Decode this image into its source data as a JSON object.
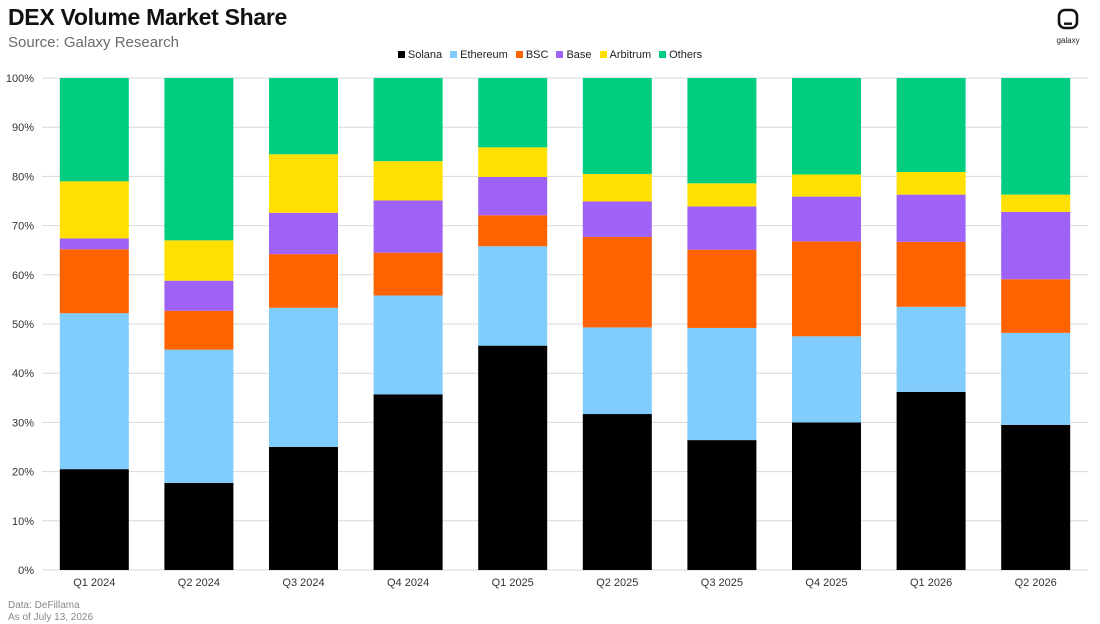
{
  "header": {
    "title": "DEX Volume Market Share",
    "subtitle": "Source: Galaxy Research",
    "logo_text": "galaxy"
  },
  "footer": {
    "source": "Data: DeFillama",
    "asof": "As of July 13, 2026"
  },
  "colors": {
    "Solana": "#000000",
    "Ethereum": "#80ccfc",
    "BSC": "#ff6200",
    "Base": "#9f62f7",
    "Arbitrum": "#ffe000",
    "Others": "#00cd80",
    "grid": "#d9d9d9"
  },
  "chart_data": {
    "type": "bar",
    "stacked": true,
    "title": "DEX Volume Market Share",
    "subtitle": "Source: Galaxy Research",
    "categories": [
      "Q1 2024",
      "Q2 2024",
      "Q3 2024",
      "Q4 2024",
      "Q1 2025",
      "Q2 2025",
      "Q3 2025",
      "Q4 2025",
      "Q1 2026",
      "Q2 2026"
    ],
    "yticks": [
      "0%",
      "10%",
      "20%",
      "30%",
      "40%",
      "50%",
      "60%",
      "70%",
      "80%",
      "90%",
      "100%"
    ],
    "ylim": [
      0,
      100
    ],
    "grid": true,
    "legend_position": "top-center",
    "series": [
      {
        "name": "Solana",
        "values": [
          20.5,
          17.7,
          25.0,
          35.7,
          45.6,
          31.7,
          26.4,
          30.0,
          36.2,
          29.5
        ]
      },
      {
        "name": "Ethereum",
        "values": [
          31.7,
          27.1,
          28.3,
          20.1,
          20.2,
          17.6,
          22.8,
          17.5,
          17.3,
          18.7
        ]
      },
      {
        "name": "BSC",
        "values": [
          13.0,
          7.9,
          10.9,
          8.7,
          6.3,
          18.4,
          15.9,
          19.3,
          13.2,
          10.9
        ]
      },
      {
        "name": "Base",
        "values": [
          2.2,
          6.1,
          8.4,
          10.6,
          7.8,
          7.2,
          8.8,
          9.1,
          9.6,
          13.7
        ]
      },
      {
        "name": "Arbitrum",
        "values": [
          11.6,
          8.2,
          11.9,
          8.0,
          6.0,
          5.6,
          4.7,
          4.5,
          4.6,
          3.5
        ]
      },
      {
        "name": "Others",
        "values": [
          21.0,
          33.0,
          15.5,
          16.9,
          14.1,
          19.5,
          21.4,
          19.6,
          19.1,
          23.7
        ]
      }
    ]
  }
}
